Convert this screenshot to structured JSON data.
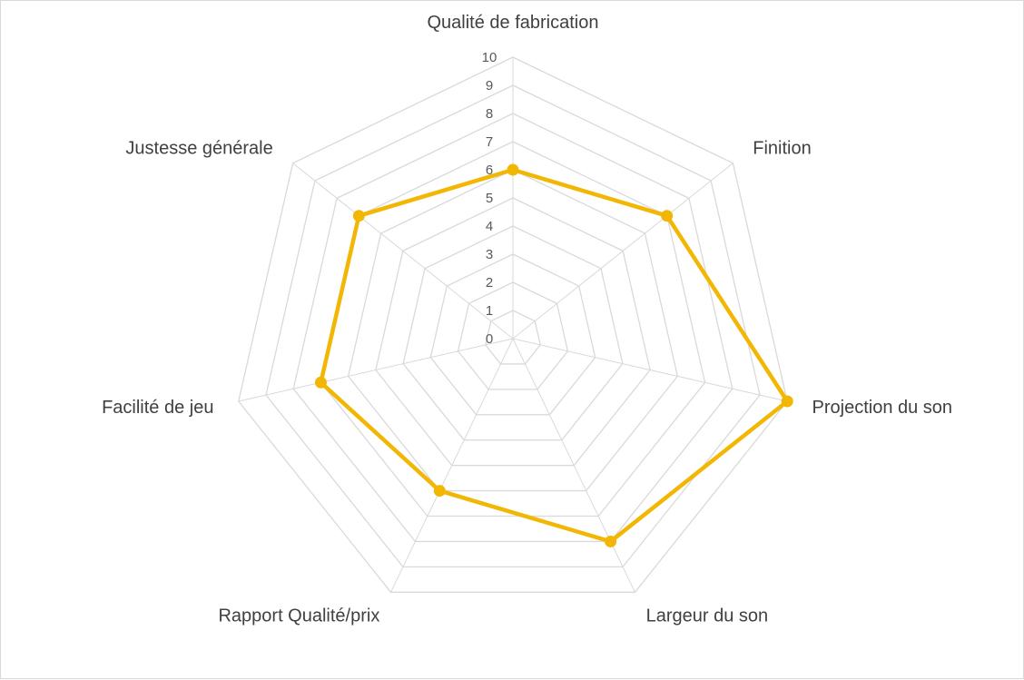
{
  "colors": {
    "series": "#F2B705",
    "grid": "#d9d9d9",
    "axis_text": "#404040",
    "tick_text": "#595959"
  },
  "chart_data": {
    "type": "radar",
    "title": "",
    "axes": [
      "Qualité de fabrication",
      "Finition",
      "Projection du son",
      "Largeur du son",
      "Rapport Qualité/prix",
      "Facilité de jeu",
      "Justesse générale"
    ],
    "ticks": [
      "0",
      "1",
      "2",
      "3",
      "4",
      "5",
      "6",
      "7",
      "8",
      "9",
      "10"
    ],
    "range": [
      0,
      10
    ],
    "grid": true,
    "legend": "none",
    "series": [
      {
        "values": [
          6,
          7,
          10,
          8,
          6,
          7,
          7
        ]
      }
    ]
  }
}
